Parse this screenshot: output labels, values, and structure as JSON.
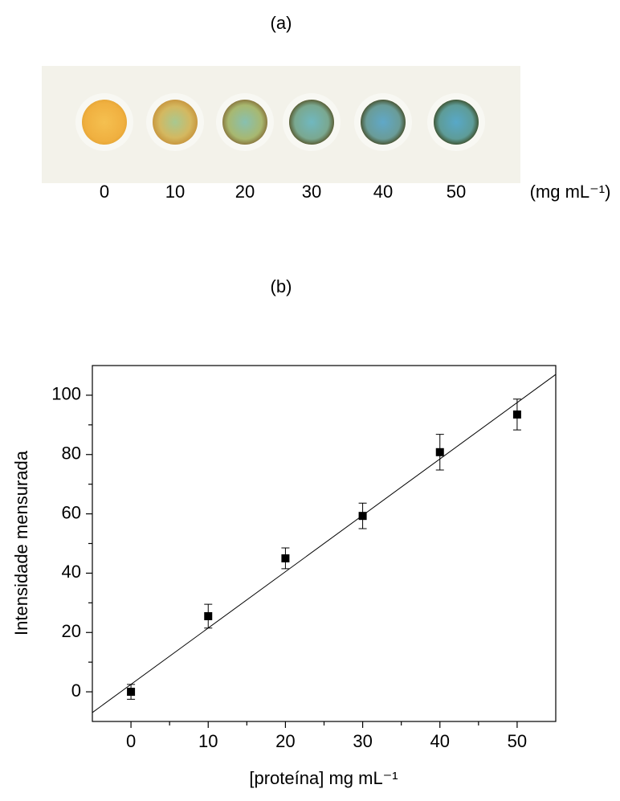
{
  "panel_a": {
    "label": "(a)",
    "concentrations": [
      0,
      10,
      20,
      30,
      40,
      50
    ],
    "unit": "(mg mL⁻¹)"
  },
  "chart_data": {
    "type": "scatter",
    "panel_label": "(b)",
    "xlabel": "[proteína] mg mL⁻¹",
    "ylabel": "Intensidade mensurada",
    "x": [
      0,
      10,
      20,
      30,
      40,
      50
    ],
    "values": [
      0,
      25.5,
      45,
      59.3,
      80.8,
      93.5
    ],
    "errors": [
      2.5,
      4,
      3.5,
      4.3,
      6,
      5.2
    ],
    "color": "#000000",
    "fit_line": {
      "x": [
        -5,
        55
      ],
      "values": [
        -7,
        107
      ]
    },
    "xlim": [
      -5,
      55
    ],
    "xticks": [
      0,
      10,
      20,
      30,
      40,
      50
    ],
    "xminorticks": [
      5,
      15,
      25,
      35,
      45
    ],
    "ylim": [
      -10,
      110
    ],
    "yticks": [
      0,
      20,
      40,
      60,
      80,
      100
    ],
    "yminorticks": [
      10,
      30,
      50,
      70,
      90
    ]
  }
}
